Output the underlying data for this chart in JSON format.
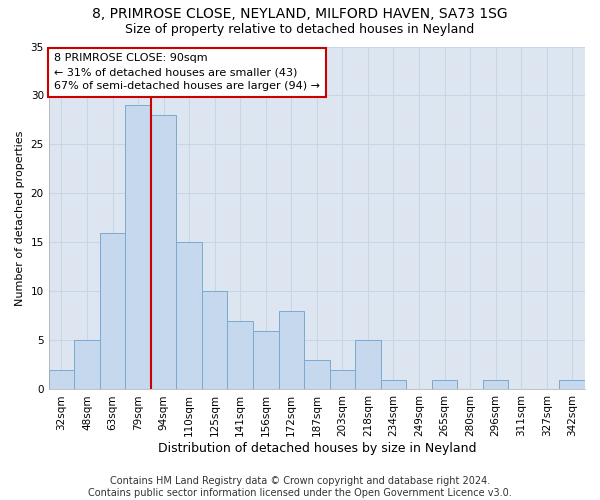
{
  "title1": "8, PRIMROSE CLOSE, NEYLAND, MILFORD HAVEN, SA73 1SG",
  "title2": "Size of property relative to detached houses in Neyland",
  "xlabel": "Distribution of detached houses by size in Neyland",
  "ylabel": "Number of detached properties",
  "categories": [
    "32sqm",
    "48sqm",
    "63sqm",
    "79sqm",
    "94sqm",
    "110sqm",
    "125sqm",
    "141sqm",
    "156sqm",
    "172sqm",
    "187sqm",
    "203sqm",
    "218sqm",
    "234sqm",
    "249sqm",
    "265sqm",
    "280sqm",
    "296sqm",
    "311sqm",
    "327sqm",
    "342sqm"
  ],
  "values": [
    2,
    5,
    16,
    29,
    28,
    15,
    10,
    7,
    6,
    8,
    3,
    2,
    5,
    1,
    0,
    1,
    0,
    1,
    0,
    0,
    1
  ],
  "bar_color": "#c5d8ee",
  "bar_edge_color": "#7aaad0",
  "vline_color": "#cc0000",
  "vline_index": 4,
  "annotation_text": "8 PRIMROSE CLOSE: 90sqm\n← 31% of detached houses are smaller (43)\n67% of semi-detached houses are larger (94) →",
  "annotation_box_color": "#ffffff",
  "annotation_box_edge_color": "#cc0000",
  "footer_text": "Contains HM Land Registry data © Crown copyright and database right 2024.\nContains public sector information licensed under the Open Government Licence v3.0.",
  "ylim": [
    0,
    35
  ],
  "yticks": [
    0,
    5,
    10,
    15,
    20,
    25,
    30,
    35
  ],
  "grid_color": "#c8d4e8",
  "bg_color": "#dde6f0",
  "fig_bg_color": "#ffffff",
  "title1_fontsize": 10,
  "title2_fontsize": 9,
  "xlabel_fontsize": 9,
  "ylabel_fontsize": 8,
  "tick_fontsize": 7.5,
  "ann_fontsize": 8,
  "footer_fontsize": 7
}
